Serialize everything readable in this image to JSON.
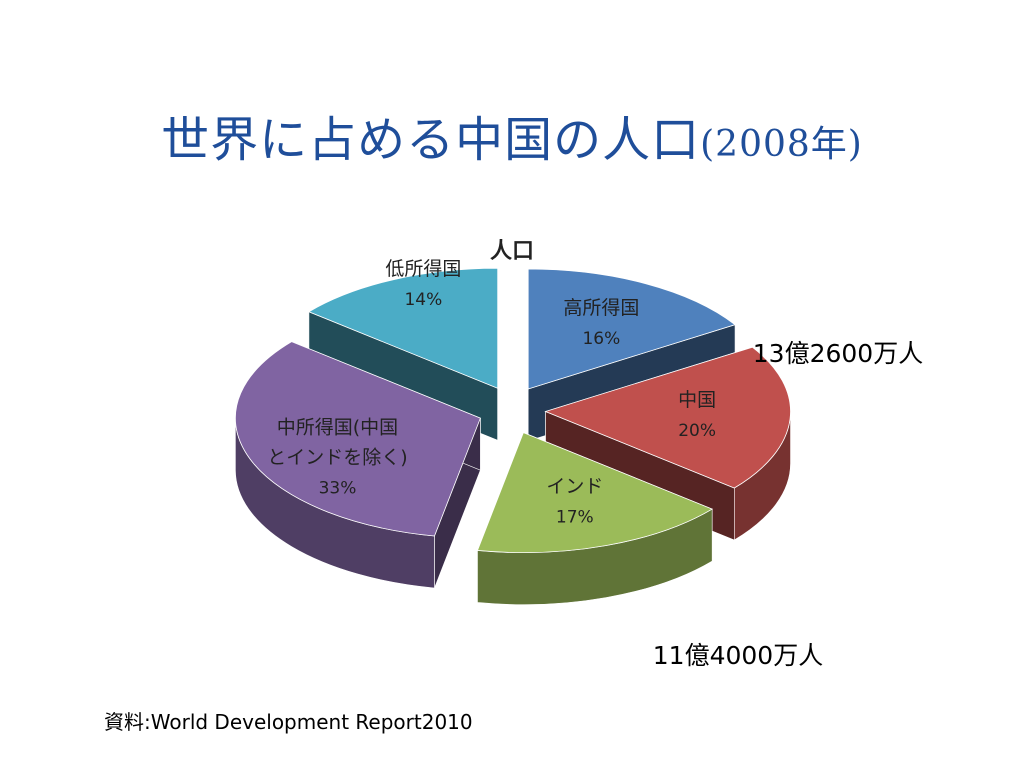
{
  "slide": {
    "title_main": "世界に占める中国の人口",
    "title_year": "(2008年)",
    "source_prefix": "資料",
    "source_separator": ":",
    "source_text": "World Development Report2010"
  },
  "chart_data": {
    "type": "pie",
    "style": "3d-exploded",
    "title": "人口",
    "categories": [
      "高所得国",
      "中国",
      "インド",
      "中所得国(中国とインドを除く)",
      "低所得国"
    ],
    "values": [
      16,
      20,
      17,
      33,
      14
    ],
    "unit": "%",
    "slices": [
      {
        "name": "高所得国",
        "name_lines": [
          "高所得国"
        ],
        "value": 16,
        "label": "16%",
        "color": "#4f81bd"
      },
      {
        "name": "中国",
        "name_lines": [
          "中国"
        ],
        "value": 20,
        "label": "20%",
        "color": "#c0504d"
      },
      {
        "name": "インド",
        "name_lines": [
          "インド"
        ],
        "value": 17,
        "label": "17%",
        "color": "#9bbb59"
      },
      {
        "name": "中所得国(中国とインドを除く)",
        "name_lines": [
          "中所得国(中国",
          "とインドを除く)"
        ],
        "value": 33,
        "label": "33%",
        "color": "#8064a2"
      },
      {
        "name": "低所得国",
        "name_lines": [
          "低所得国"
        ],
        "value": 14,
        "label": "14%",
        "color": "#4bacc6"
      }
    ],
    "annotations": [
      {
        "target": "中国",
        "text": "13億2600万人"
      },
      {
        "target": "インド",
        "text": "11億4000万人"
      }
    ]
  }
}
